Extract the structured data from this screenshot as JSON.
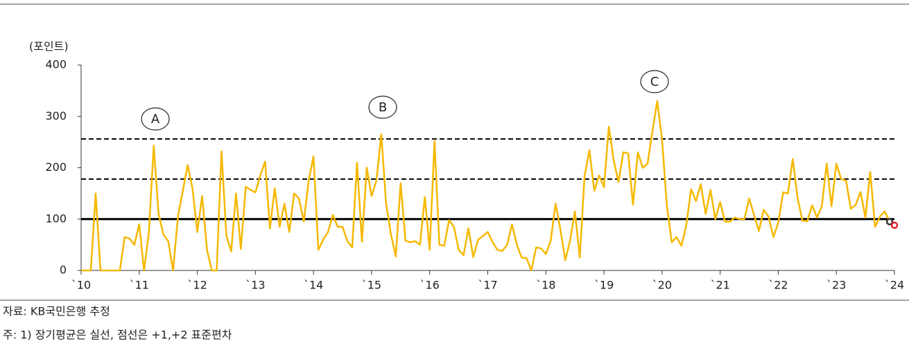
{
  "chart_data": {
    "type": "line",
    "y_unit_label": "(포인트)",
    "source": "자료: KB국민은행 추정",
    "note": "주: 1) 장기평균은 실선, 점선은 +1,+2 표준편차",
    "categories": [
      "`10",
      null,
      null,
      null,
      null,
      null,
      null,
      null,
      null,
      null,
      null,
      null,
      "`11",
      null,
      null,
      null,
      null,
      null,
      null,
      null,
      null,
      null,
      null,
      null,
      "`12",
      null,
      null,
      null,
      null,
      null,
      null,
      null,
      null,
      null,
      null,
      null,
      "`13",
      null,
      null,
      null,
      null,
      null,
      null,
      null,
      null,
      null,
      null,
      null,
      "`14",
      null,
      null,
      null,
      null,
      null,
      null,
      null,
      null,
      null,
      null,
      null,
      "`15",
      null,
      null,
      null,
      null,
      null,
      null,
      null,
      null,
      null,
      null,
      null,
      "`16",
      null,
      null,
      null,
      null,
      null,
      null,
      null,
      null,
      null,
      null,
      null,
      "`17",
      null,
      null,
      null,
      null,
      null,
      null,
      null,
      null,
      null,
      null,
      null,
      "`18",
      null,
      null,
      null,
      null,
      null,
      null,
      null,
      null,
      null,
      null,
      null,
      "`19",
      null,
      null,
      null,
      null,
      null,
      null,
      null,
      null,
      null,
      null,
      null,
      "`20",
      null,
      null,
      null,
      null,
      null,
      null,
      null,
      null,
      null,
      null,
      null,
      "`21",
      null,
      null,
      null,
      null,
      null,
      null,
      null,
      null,
      null,
      null,
      null,
      "`22",
      null,
      null,
      null,
      null,
      null,
      null,
      null,
      null,
      null,
      null,
      null,
      "`23",
      null,
      null,
      null,
      null,
      null,
      null,
      null,
      null,
      null,
      null,
      null,
      "`24"
    ],
    "series": [
      {
        "color": "#f5b800",
        "marker": false,
        "values": [
          0,
          0,
          0,
          150,
          0,
          0,
          0,
          0,
          0,
          65,
          62,
          50,
          90,
          0,
          75,
          243,
          110,
          70,
          57,
          0,
          105,
          155,
          205,
          160,
          75,
          145,
          40,
          0,
          0,
          232,
          68,
          37,
          150,
          42,
          163,
          157,
          152,
          185,
          212,
          82,
          160,
          85,
          130,
          75,
          150,
          140,
          95,
          175,
          222,
          40,
          60,
          75,
          108,
          85,
          85,
          57,
          45,
          210,
          56,
          200,
          145,
          175,
          265,
          130,
          70,
          27,
          170,
          58,
          55,
          57,
          50,
          143,
          40,
          252,
          50,
          48,
          98,
          85,
          40,
          30,
          82,
          26,
          60,
          67,
          75,
          55,
          40,
          38,
          50,
          90,
          50,
          25,
          24,
          0,
          45,
          43,
          32,
          58,
          130,
          80,
          20,
          58,
          115,
          25,
          185,
          234,
          155,
          185,
          162,
          280,
          215,
          172,
          230,
          228,
          128,
          230,
          200,
          208,
          270,
          330,
          255,
          125,
          55,
          65,
          48,
          88,
          158,
          135,
          168,
          110,
          157,
          100,
          133,
          95,
          95,
          103,
          100,
          100,
          140,
          108,
          77,
          118,
          105,
          65,
          93,
          152,
          150,
          217,
          140,
          97,
          96,
          127,
          103,
          125,
          208,
          125,
          208,
          178,
          175,
          120,
          128,
          153,
          103,
          192,
          85,
          105,
          115,
          95,
          null
        ]
      },
      {
        "color": "#333333",
        "marker": true,
        "values": [
          null,
          null,
          null,
          null,
          null,
          null,
          null,
          null,
          null,
          null,
          null,
          null,
          null,
          null,
          null,
          null,
          null,
          null,
          null,
          null,
          null,
          null,
          null,
          null,
          null,
          null,
          null,
          null,
          null,
          null,
          null,
          null,
          null,
          null,
          null,
          null,
          null,
          null,
          null,
          null,
          null,
          null,
          null,
          null,
          null,
          null,
          null,
          null,
          null,
          null,
          null,
          null,
          null,
          null,
          null,
          null,
          null,
          null,
          null,
          null,
          null,
          null,
          null,
          null,
          null,
          null,
          null,
          null,
          null,
          null,
          null,
          null,
          null,
          null,
          null,
          null,
          null,
          null,
          null,
          null,
          null,
          null,
          null,
          null,
          null,
          null,
          null,
          null,
          null,
          null,
          null,
          null,
          null,
          null,
          null,
          null,
          null,
          null,
          null,
          null,
          null,
          null,
          null,
          null,
          null,
          null,
          null,
          null,
          null,
          null,
          null,
          null,
          null,
          null,
          null,
          null,
          null,
          null,
          null,
          null,
          null,
          null,
          null,
          null,
          null,
          null,
          null,
          null,
          null,
          null,
          null,
          null,
          null,
          null,
          null,
          null,
          null,
          null,
          null,
          null,
          null,
          null,
          null,
          null,
          null,
          null,
          null,
          null,
          null,
          null,
          null,
          null,
          null,
          null,
          null,
          null,
          null,
          null,
          null,
          null,
          null,
          null,
          null,
          null,
          null,
          null,
          null,
          95,
          null
        ]
      },
      {
        "color": "#e8202a",
        "marker": true,
        "values": [
          null,
          null,
          null,
          null,
          null,
          null,
          null,
          null,
          null,
          null,
          null,
          null,
          null,
          null,
          null,
          null,
          null,
          null,
          null,
          null,
          null,
          null,
          null,
          null,
          null,
          null,
          null,
          null,
          null,
          null,
          null,
          null,
          null,
          null,
          null,
          null,
          null,
          null,
          null,
          null,
          null,
          null,
          null,
          null,
          null,
          null,
          null,
          null,
          null,
          null,
          null,
          null,
          null,
          null,
          null,
          null,
          null,
          null,
          null,
          null,
          null,
          null,
          null,
          null,
          null,
          null,
          null,
          null,
          null,
          null,
          null,
          null,
          null,
          null,
          null,
          null,
          null,
          null,
          null,
          null,
          null,
          null,
          null,
          null,
          null,
          null,
          null,
          null,
          null,
          null,
          null,
          null,
          null,
          null,
          null,
          null,
          null,
          null,
          null,
          null,
          null,
          null,
          null,
          null,
          null,
          null,
          null,
          null,
          null,
          null,
          null,
          null,
          null,
          null,
          null,
          null,
          null,
          null,
          null,
          null,
          null,
          null,
          null,
          null,
          null,
          null,
          null,
          null,
          null,
          null,
          null,
          null,
          null,
          null,
          null,
          null,
          null,
          null,
          null,
          null,
          null,
          null,
          null,
          null,
          null,
          null,
          null,
          null,
          null,
          null,
          null,
          null,
          null,
          null,
          null,
          null,
          null,
          null,
          null,
          null,
          null,
          null,
          null,
          null,
          null,
          null,
          null,
          null,
          88
        ]
      }
    ],
    "reference_lines": [
      {
        "value": 100,
        "style": "solid"
      },
      {
        "value": 256,
        "style": "dashed"
      },
      {
        "value": 178,
        "style": "dashed"
      }
    ],
    "annotations": [
      "A",
      "B",
      "C"
    ],
    "ylim": [
      0,
      400
    ],
    "yticks": [
      0,
      100,
      200,
      300,
      400
    ]
  }
}
